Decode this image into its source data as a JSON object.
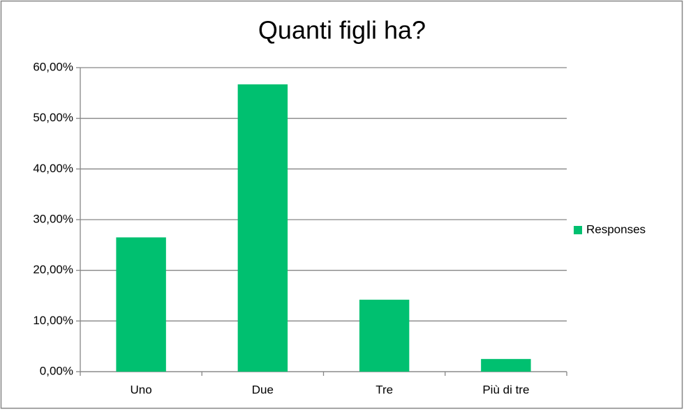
{
  "chart_data": {
    "type": "bar",
    "title": "Quanti figli ha?",
    "categories": [
      "Uno",
      "Due",
      "Tre",
      "Più di tre"
    ],
    "series": [
      {
        "name": "Responses",
        "color": "#00c070",
        "values": [
          26.5,
          56.7,
          14.2,
          2.5
        ]
      }
    ],
    "ylim": [
      0,
      60
    ],
    "yticks": [
      {
        "value": 0,
        "label": "0,00%"
      },
      {
        "value": 10,
        "label": "10,00%"
      },
      {
        "value": 20,
        "label": "20,00%"
      },
      {
        "value": 30,
        "label": "30,00%"
      },
      {
        "value": 40,
        "label": "40,00%"
      },
      {
        "value": 50,
        "label": "50,00%"
      },
      {
        "value": 60,
        "label": "60,00%"
      }
    ],
    "grid": true,
    "legend": "right"
  }
}
